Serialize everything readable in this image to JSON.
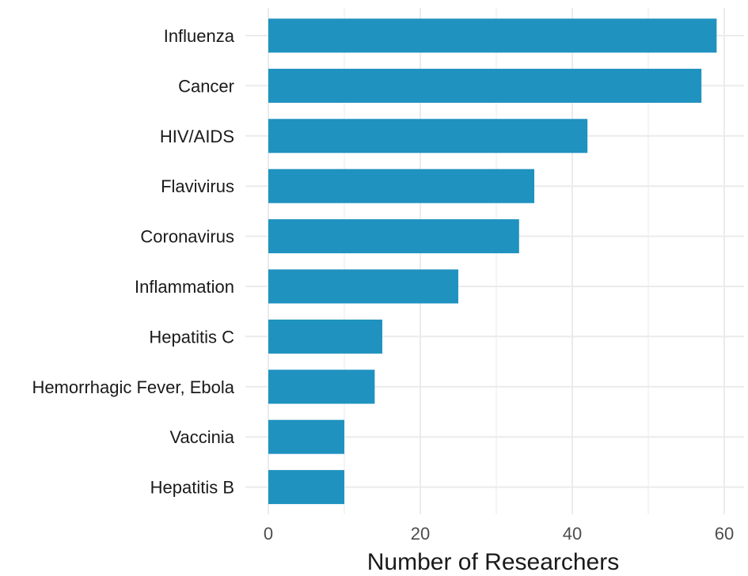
{
  "chart_data": {
    "type": "bar",
    "orientation": "horizontal",
    "categories": [
      "Influenza",
      "Cancer",
      "HIV/AIDS",
      "Flavivirus",
      "Coronavirus",
      "Inflammation",
      "Hepatitis C",
      "Hemorrhagic Fever, Ebola",
      "Vaccinia",
      "Hepatitis B"
    ],
    "values": [
      59,
      57,
      42,
      35,
      33,
      25,
      15,
      14,
      10,
      10
    ],
    "xlabel": "Number of Researchers",
    "ylabel": "",
    "xlim": [
      0,
      62
    ],
    "xticks": [
      0,
      20,
      40,
      60
    ],
    "bar_color": "#1f92c0",
    "grid": true
  }
}
